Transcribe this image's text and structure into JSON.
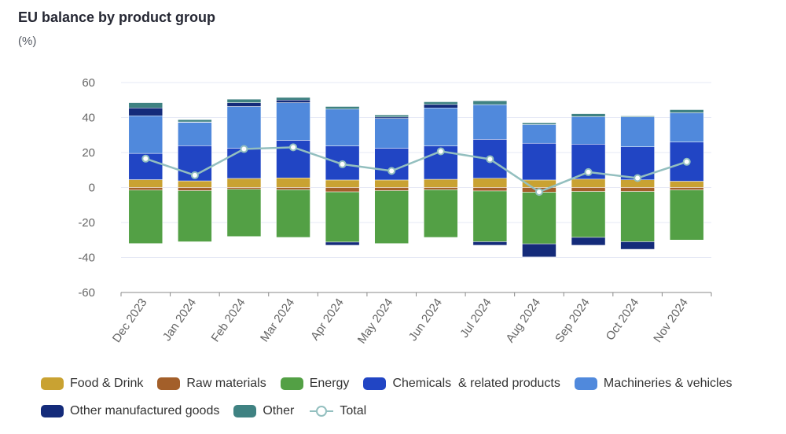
{
  "title": "EU balance by product group",
  "subtitle": "(%)",
  "chart_data": {
    "type": "bar",
    "stacked": true,
    "title": "EU balance by product group",
    "subtitle": "(%)",
    "xlabel": "",
    "ylabel": "",
    "ylim": [
      -60,
      60
    ],
    "yticks": [
      60,
      40,
      20,
      0,
      -20,
      -40,
      -60
    ],
    "grid": true,
    "legend_position": "bottom",
    "categories": [
      "Dec 2023",
      "Jan 2024",
      "Feb 2024",
      "Mar 2024",
      "Apr 2024",
      "May 2024",
      "Jun 2024",
      "Jul 2024",
      "Aug 2024",
      "Sep 2024",
      "Oct 2024",
      "Nov 2024"
    ],
    "series": [
      {
        "name": "Food & Drink",
        "color": "#c9a232",
        "values": [
          4.5,
          3.8,
          5.2,
          5.5,
          4.3,
          4.3,
          4.7,
          5.3,
          4.3,
          4.8,
          4.4,
          3.6
        ]
      },
      {
        "name": "Raw materials",
        "color": "#a35f2a",
        "values": [
          -1.5,
          -1.8,
          -1.0,
          -1.3,
          -2.5,
          -1.8,
          -1.3,
          -2.0,
          -2.7,
          -2.3,
          -2.3,
          -1.4
        ]
      },
      {
        "name": "Energy",
        "color": "#53a045",
        "values": [
          -30.5,
          -29.2,
          -27.0,
          -27.2,
          -28.7,
          -30.2,
          -27.2,
          -29.0,
          -29.5,
          -26.2,
          -28.7,
          -28.6
        ]
      },
      {
        "name": "Chemicals  & related products",
        "color": "#2145c4",
        "values": [
          15.0,
          20.1,
          17.3,
          21.5,
          19.5,
          18.2,
          19.1,
          22.2,
          21.0,
          20.0,
          18.9,
          22.4
        ]
      },
      {
        "name": "Machineries & vehicles",
        "color": "#5089dc",
        "values": [
          21.5,
          13.3,
          23.8,
          21.5,
          21.0,
          17.0,
          21.7,
          19.9,
          10.7,
          15.7,
          17.1,
          16.7
        ]
      },
      {
        "name": "Other manufactured goods",
        "color": "#142b7a",
        "values": [
          4.5,
          0.3,
          2.2,
          1.5,
          -1.8,
          0.8,
          2.0,
          -2.0,
          -7.5,
          -4.5,
          -4.3,
          0
        ]
      },
      {
        "name": "Other",
        "color": "#3f8282",
        "values": [
          3.0,
          1.3,
          2.0,
          1.5,
          1.5,
          1.2,
          1.5,
          2.2,
          1.0,
          1.7,
          0.5,
          1.8
        ]
      }
    ],
    "line_series": {
      "name": "Total",
      "color": "#93bfbf",
      "values": [
        16.5,
        7.0,
        22.0,
        23.0,
        13.3,
        9.5,
        20.7,
        16.2,
        -2.5,
        8.8,
        5.4,
        14.7
      ]
    }
  },
  "legend": {
    "row1": [
      "Food & Drink",
      "Raw materials",
      "Energy",
      "Chemicals  & related products",
      "Machineries & vehicles"
    ],
    "row2": [
      "Other manufactured goods",
      "Other",
      "Total"
    ]
  }
}
